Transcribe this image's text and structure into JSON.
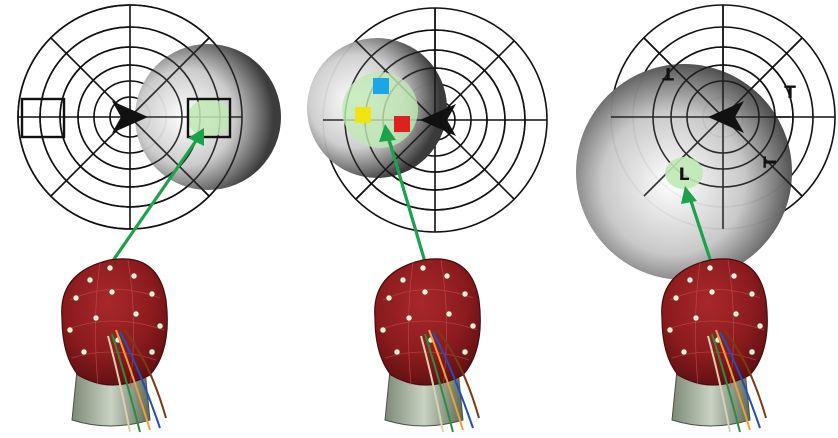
{
  "panels": [
    {
      "id": "panel-1",
      "stimuli": [
        {
          "kind": "square",
          "color": "none"
        },
        {
          "kind": "square",
          "color": "none"
        }
      ]
    },
    {
      "id": "panel-2",
      "stimuli": [
        {
          "kind": "square",
          "color": "#1ba6e8"
        },
        {
          "kind": "square",
          "color": "#f2e313"
        },
        {
          "kind": "square",
          "color": "#e01f1f"
        }
      ]
    },
    {
      "id": "panel-3",
      "stimuli": [
        {
          "kind": "letter",
          "text": "T"
        },
        {
          "kind": "letter",
          "text": "T"
        },
        {
          "kind": "letter",
          "text": "T"
        },
        {
          "kind": "letter",
          "text": "L"
        }
      ]
    }
  ],
  "colors": {
    "grid": "#111111",
    "attention_focus": "#bfe8b4",
    "arrow": "#1aa34a",
    "fixation": "#111111",
    "cap": "#8b1b1e"
  },
  "icons": {
    "fixation": "arrowhead-icon",
    "headset": "eeg-cap-icon"
  }
}
